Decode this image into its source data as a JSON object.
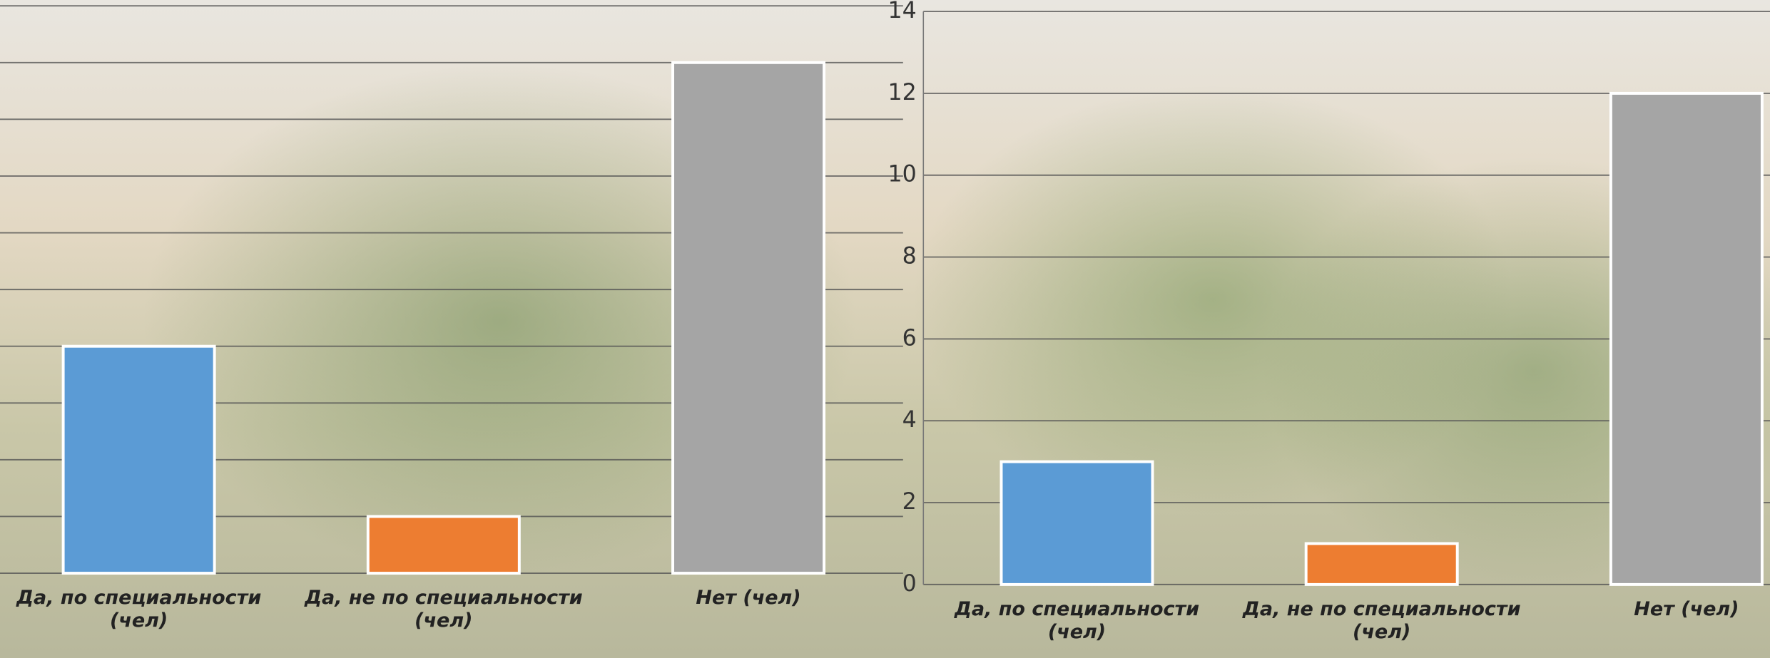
{
  "chart_data": [
    {
      "type": "bar",
      "categories": [
        "Да, по специальности (чел)",
        "Да, не по специальности (чел)",
        "Нет (чел)"
      ],
      "values": [
        4,
        1,
        9
      ],
      "colors": [
        "#5b9bd5",
        "#ed7d31",
        "#a5a5a5"
      ],
      "ylim": [
        0,
        10
      ],
      "yticks": [
        0,
        1,
        2,
        3,
        4,
        5,
        6,
        7,
        8,
        9,
        10
      ],
      "grid": true,
      "ytick_labels": false
    },
    {
      "type": "bar",
      "categories": [
        "Да, по специальности (чел)",
        "Да, не по специальности (чел)",
        "Нет (чел)"
      ],
      "values": [
        3,
        1,
        12
      ],
      "colors": [
        "#5b9bd5",
        "#ed7d31",
        "#a5a5a5"
      ],
      "ylim": [
        0,
        14
      ],
      "yticks": [
        0,
        2,
        4,
        6,
        8,
        10,
        12,
        14
      ],
      "grid": true,
      "ytick_labels": true
    }
  ]
}
